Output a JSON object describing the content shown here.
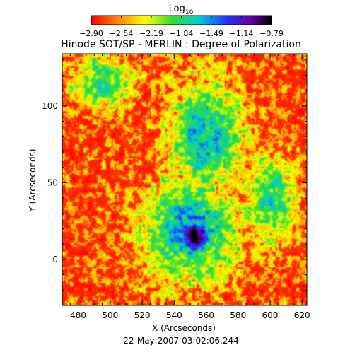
{
  "chart_data": {
    "type": "heatmap",
    "title": "Hinode SOT/SP - MERLIN : Degree of Polarization",
    "timestamp": "22-May-2007 03:02:06.244",
    "xlabel": "X (Arcseconds)",
    "ylabel": "Y (Arcseconds)",
    "xlim": [
      470,
      623
    ],
    "ylim": [
      -30,
      134
    ],
    "x_ticks": [
      480,
      500,
      520,
      540,
      560,
      580,
      600,
      620
    ],
    "y_ticks": [
      0,
      50,
      100
    ],
    "colorbar": {
      "label_base": "Log",
      "label_sub": "10",
      "range": [
        -2.9,
        -0.79
      ],
      "ticks": [
        "-2.90",
        "-2.54",
        "-2.19",
        "-1.84",
        "-1.49",
        "-1.14",
        "-0.79"
      ],
      "colormap": "rainbow"
    },
    "features": [
      {
        "name": "central-dense-patch",
        "x": 553,
        "y": 15,
        "value": -0.9
      },
      {
        "name": "core-ring",
        "x": 550,
        "y": 20,
        "value": -1.7
      },
      {
        "name": "upper-plage",
        "x": 560,
        "y": 80,
        "value": -1.8
      },
      {
        "name": "left-network",
        "x": 495,
        "y": 115,
        "value": -2.0
      },
      {
        "name": "right-network",
        "x": 600,
        "y": 40,
        "value": -2.0
      }
    ]
  }
}
